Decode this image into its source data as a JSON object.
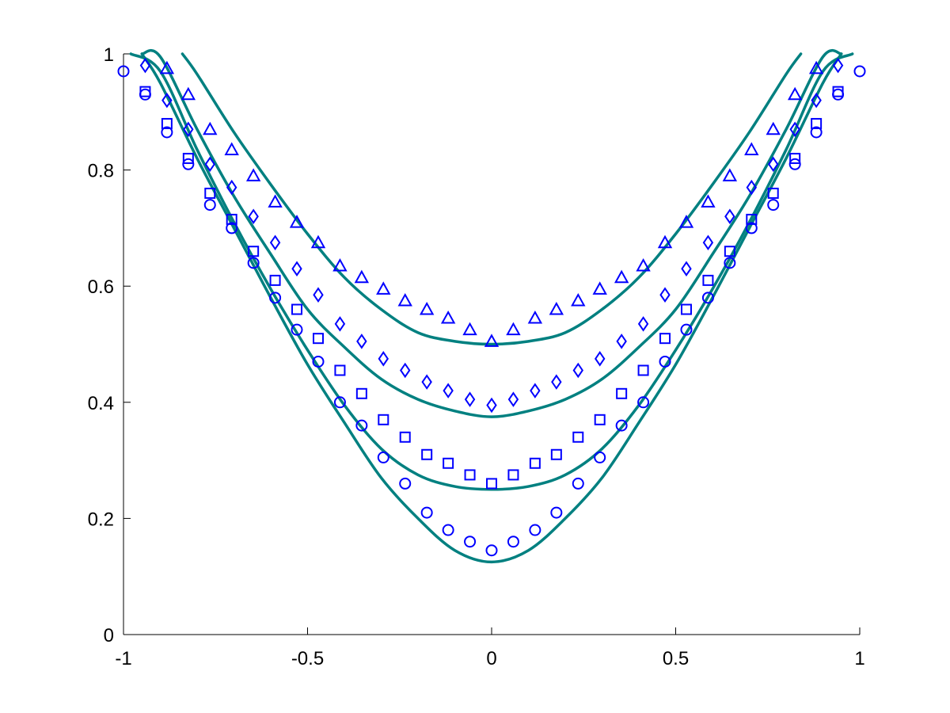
{
  "chart_data": {
    "type": "scatter",
    "title": "",
    "xlabel": "",
    "ylabel": "",
    "xlim": [
      -1,
      1
    ],
    "ylim": [
      0,
      1
    ],
    "xticks": [
      -1,
      -0.5,
      0,
      0.5,
      1
    ],
    "xtick_labels": [
      "-1",
      "-0.5",
      "0",
      "0.5",
      "1"
    ],
    "yticks": [
      0,
      0.2,
      0.4,
      0.6,
      0.8,
      1
    ],
    "ytick_labels": [
      "0",
      "0.2",
      "0.4",
      "0.6",
      "0.8",
      "1"
    ],
    "grid": false,
    "colors": {
      "markers": "#0000ff",
      "curves": "#008080"
    },
    "marker_series": [
      {
        "marker": "circle",
        "x": [
          -1,
          -0.941,
          -0.882,
          -0.824,
          -0.765,
          -0.706,
          -0.647,
          -0.588,
          -0.529,
          -0.471,
          -0.412,
          -0.353,
          -0.294,
          -0.235,
          -0.176,
          -0.118,
          -0.059,
          0,
          0.059,
          0.118,
          0.176,
          0.235,
          0.294,
          0.353,
          0.412,
          0.471,
          0.529,
          0.588,
          0.647,
          0.706,
          0.765,
          0.824,
          0.882,
          0.941,
          1
        ],
        "y": [
          0.97,
          0.93,
          0.865,
          0.81,
          0.74,
          0.7,
          0.64,
          0.58,
          0.525,
          0.47,
          0.4,
          0.36,
          0.305,
          0.26,
          0.21,
          0.18,
          0.16,
          0.145,
          0.16,
          0.18,
          0.21,
          0.26,
          0.305,
          0.36,
          0.4,
          0.47,
          0.525,
          0.58,
          0.64,
          0.7,
          0.74,
          0.81,
          0.865,
          0.93,
          0.97
        ]
      },
      {
        "marker": "square",
        "x": [
          -0.941,
          -0.882,
          -0.824,
          -0.765,
          -0.706,
          -0.647,
          -0.588,
          -0.529,
          -0.471,
          -0.412,
          -0.353,
          -0.294,
          -0.235,
          -0.176,
          -0.118,
          -0.059,
          0,
          0.059,
          0.118,
          0.176,
          0.235,
          0.294,
          0.353,
          0.412,
          0.471,
          0.529,
          0.588,
          0.647,
          0.706,
          0.765,
          0.824,
          0.882,
          0.941
        ],
        "y": [
          0.935,
          0.88,
          0.82,
          0.76,
          0.715,
          0.66,
          0.61,
          0.56,
          0.51,
          0.455,
          0.415,
          0.37,
          0.34,
          0.31,
          0.295,
          0.275,
          0.26,
          0.275,
          0.295,
          0.31,
          0.34,
          0.37,
          0.415,
          0.455,
          0.51,
          0.56,
          0.61,
          0.66,
          0.715,
          0.76,
          0.82,
          0.88,
          0.935
        ]
      },
      {
        "marker": "diamond",
        "x": [
          -0.941,
          -0.882,
          -0.824,
          -0.765,
          -0.706,
          -0.647,
          -0.588,
          -0.529,
          -0.471,
          -0.412,
          -0.353,
          -0.294,
          -0.235,
          -0.176,
          -0.118,
          -0.059,
          0,
          0.059,
          0.118,
          0.176,
          0.235,
          0.294,
          0.353,
          0.412,
          0.471,
          0.529,
          0.588,
          0.647,
          0.706,
          0.765,
          0.824,
          0.882,
          0.941
        ],
        "y": [
          0.98,
          0.92,
          0.87,
          0.81,
          0.77,
          0.72,
          0.675,
          0.63,
          0.585,
          0.535,
          0.505,
          0.475,
          0.455,
          0.435,
          0.42,
          0.405,
          0.395,
          0.405,
          0.42,
          0.435,
          0.455,
          0.475,
          0.505,
          0.535,
          0.585,
          0.63,
          0.675,
          0.72,
          0.77,
          0.81,
          0.87,
          0.92,
          0.98
        ]
      },
      {
        "marker": "triangle",
        "x": [
          -0.882,
          -0.824,
          -0.765,
          -0.706,
          -0.647,
          -0.588,
          -0.529,
          -0.471,
          -0.412,
          -0.353,
          -0.294,
          -0.235,
          -0.176,
          -0.118,
          -0.059,
          0,
          0.059,
          0.118,
          0.176,
          0.235,
          0.294,
          0.353,
          0.412,
          0.471,
          0.529,
          0.588,
          0.647,
          0.706,
          0.765,
          0.824,
          0.882
        ],
        "y": [
          0.975,
          0.93,
          0.87,
          0.835,
          0.79,
          0.745,
          0.71,
          0.675,
          0.635,
          0.615,
          0.595,
          0.575,
          0.56,
          0.545,
          0.525,
          0.505,
          0.525,
          0.545,
          0.56,
          0.575,
          0.595,
          0.615,
          0.635,
          0.675,
          0.71,
          0.745,
          0.79,
          0.835,
          0.87,
          0.93,
          0.975
        ]
      }
    ],
    "line_series": [
      {
        "x": [
          -0.95,
          -0.9,
          -0.8,
          -0.7,
          -0.6,
          -0.5,
          -0.4,
          -0.3,
          -0.2,
          -0.1,
          0,
          0.1,
          0.2,
          0.3,
          0.4,
          0.5,
          0.6,
          0.7,
          0.8,
          0.9,
          0.95
        ],
        "y": [
          1.0,
          0.95,
          0.82,
          0.7,
          0.58,
          0.465,
          0.365,
          0.27,
          0.2,
          0.145,
          0.125,
          0.145,
          0.2,
          0.27,
          0.365,
          0.465,
          0.58,
          0.7,
          0.82,
          0.95,
          1.0
        ]
      },
      {
        "x": [
          -0.98,
          -0.9,
          -0.8,
          -0.7,
          -0.6,
          -0.5,
          -0.4,
          -0.3,
          -0.2,
          -0.1,
          0,
          0.1,
          0.2,
          0.3,
          0.4,
          0.5,
          0.6,
          0.7,
          0.8,
          0.9,
          0.98
        ],
        "y": [
          1.0,
          0.97,
          0.835,
          0.71,
          0.595,
          0.49,
          0.395,
          0.32,
          0.275,
          0.255,
          0.25,
          0.255,
          0.275,
          0.32,
          0.395,
          0.49,
          0.595,
          0.71,
          0.835,
          0.97,
          1.0
        ]
      },
      {
        "x": [
          -0.95,
          -0.9,
          -0.8,
          -0.7,
          -0.6,
          -0.5,
          -0.4,
          -0.3,
          -0.2,
          -0.1,
          0,
          0.1,
          0.2,
          0.3,
          0.4,
          0.5,
          0.6,
          0.7,
          0.8,
          0.9,
          0.95
        ],
        "y": [
          1.0,
          0.995,
          0.87,
          0.755,
          0.655,
          0.56,
          0.495,
          0.44,
          0.405,
          0.385,
          0.375,
          0.385,
          0.405,
          0.44,
          0.495,
          0.56,
          0.655,
          0.755,
          0.87,
          0.995,
          1.0
        ]
      },
      {
        "x": [
          -0.84,
          -0.8,
          -0.7,
          -0.6,
          -0.5,
          -0.4,
          -0.3,
          -0.2,
          -0.1,
          0,
          0.1,
          0.2,
          0.3,
          0.4,
          0.5,
          0.6,
          0.7,
          0.8,
          0.84
        ],
        "y": [
          1.0,
          0.965,
          0.865,
          0.775,
          0.69,
          0.615,
          0.56,
          0.52,
          0.505,
          0.5,
          0.505,
          0.52,
          0.56,
          0.615,
          0.69,
          0.775,
          0.865,
          0.965,
          1.0
        ]
      }
    ]
  }
}
